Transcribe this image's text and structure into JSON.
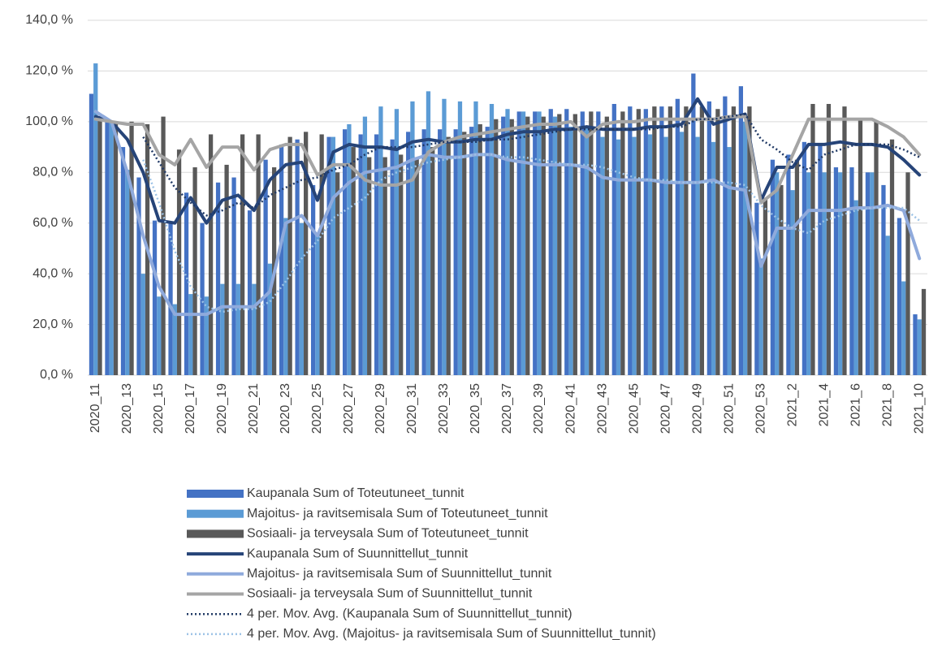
{
  "chart_data": {
    "type": "combo",
    "categories": [
      "2020_11",
      null,
      "2020_13",
      null,
      "2020_15",
      null,
      "2020_17",
      null,
      "2020_19",
      null,
      "2020_21",
      null,
      "2020_23",
      null,
      "2020_25",
      null,
      "2020_27",
      null,
      "2020_29",
      null,
      "2020_31",
      null,
      "2020_33",
      null,
      "2020_35",
      null,
      "2020_37",
      null,
      "2020_39",
      null,
      "2020_41",
      null,
      "2020_43",
      null,
      "2020_45",
      null,
      "2020_47",
      null,
      "2020_49",
      null,
      "2020_51",
      null,
      "2020_53",
      null,
      "2021_2",
      null,
      "2021_4",
      null,
      "2021_6",
      null,
      "2021_8",
      null,
      "2021_10"
    ],
    "ylim": [
      0,
      140
    ],
    "yticks": [
      {
        "value": 0,
        "label": "0,0 %"
      },
      {
        "value": 20,
        "label": "20,0 %"
      },
      {
        "value": 40,
        "label": "40,0 %"
      },
      {
        "value": 60,
        "label": "60,0 %"
      },
      {
        "value": 80,
        "label": "80,0 %"
      },
      {
        "value": 100,
        "label": "100,0 %"
      },
      {
        "value": 120,
        "label": "120,0 %"
      },
      {
        "value": 140,
        "label": "140,0 %"
      }
    ],
    "grid": true,
    "series": [
      {
        "name": "Kaupanala Sum of Toteutuneet_tunnit",
        "style": "bar",
        "color": "#4472c4",
        "values": [
          111,
          100,
          90,
          78,
          61,
          60,
          72,
          60,
          76,
          78,
          65,
          85,
          91,
          93,
          75,
          94,
          97,
          95,
          95,
          93,
          96,
          97,
          97,
          97,
          98,
          98,
          102,
          104,
          104,
          105,
          105,
          104,
          104,
          107,
          106,
          105,
          106,
          109,
          119,
          108,
          110,
          114,
          68,
          85,
          87,
          92,
          91,
          82,
          82,
          80,
          75,
          62,
          24
        ]
      },
      {
        "name": "Majoitus- ja ravitsemisala Sum of Toteutuneet_tunnit",
        "style": "bar",
        "color": "#5b9bd5",
        "values": [
          123,
          100,
          81,
          40,
          31,
          28,
          32,
          31,
          36,
          36,
          36,
          44,
          62,
          60,
          56,
          94,
          99,
          102,
          106,
          105,
          108,
          112,
          109,
          108,
          108,
          107,
          105,
          104,
          104,
          102,
          98,
          98,
          94,
          93,
          94,
          95,
          94,
          96,
          94,
          92,
          90,
          100,
          46,
          80,
          73,
          80,
          80,
          80,
          69,
          80,
          55,
          37,
          22
        ]
      },
      {
        "name": "Sosiaali- ja terveysala Sum of Toteutuneet_tunnit",
        "style": "bar",
        "color": "#595959",
        "values": [
          101,
          100,
          100,
          99,
          102,
          89,
          82,
          95,
          83,
          95,
          95,
          82,
          94,
          96,
          95,
          80,
          90,
          86,
          86,
          87,
          86,
          90,
          94,
          96,
          99,
          101,
          101,
          102,
          102,
          103,
          103,
          104,
          102,
          104,
          105,
          106,
          106,
          106,
          106,
          105,
          106,
          106,
          70,
          75,
          85,
          107,
          107,
          106,
          101,
          100,
          93,
          80,
          34
        ]
      },
      {
        "name": "Kaupanala Sum of Suunnittellut_tunnit",
        "style": "line",
        "color": "#264478",
        "values": [
          102,
          100,
          93,
          80,
          61,
          60,
          70,
          60,
          69,
          71,
          65,
          77,
          83,
          84,
          69,
          88,
          91,
          90,
          90,
          89,
          92,
          93,
          92,
          92,
          93,
          93,
          95,
          96,
          96,
          97,
          97,
          98,
          97,
          97,
          97,
          98,
          98,
          99,
          109,
          99,
          101,
          103,
          69,
          82,
          82,
          91,
          91,
          92,
          91,
          91,
          90,
          85,
          79
        ]
      },
      {
        "name": "Majoitus- ja ravitsemisala Sum of Suunnittellut_tunnit",
        "style": "line",
        "color": "#8faadc",
        "values": [
          104,
          100,
          80,
          55,
          35,
          24,
          24,
          24,
          27,
          27,
          27,
          33,
          60,
          63,
          55,
          70,
          76,
          80,
          81,
          82,
          85,
          87,
          86,
          86,
          87,
          87,
          85,
          84,
          83,
          83,
          83,
          82,
          78,
          77,
          77,
          77,
          76,
          76,
          76,
          77,
          74,
          73,
          43,
          58,
          58,
          65,
          65,
          65,
          66,
          66,
          67,
          65,
          46
        ]
      },
      {
        "name": "Sosiaali- ja terveysala Sum of Suunnittellut_tunnit",
        "style": "line",
        "color": "#a5a5a5",
        "values": [
          101,
          100,
          99,
          99,
          87,
          83,
          93,
          82,
          90,
          90,
          81,
          89,
          91,
          91,
          79,
          83,
          83,
          77,
          75,
          75,
          77,
          88,
          92,
          94,
          95,
          96,
          97,
          98,
          99,
          99,
          100,
          94,
          99,
          100,
          100,
          101,
          101,
          101,
          101,
          101,
          102,
          102,
          68,
          73,
          87,
          101,
          101,
          101,
          101,
          101,
          98,
          94,
          87
        ]
      },
      {
        "name": "4 per. Mov. Avg. (Kaupanala Sum of Suunnittellut_tunnit)",
        "style": "dotted",
        "color": "#1f3864",
        "values": [
          null,
          null,
          null,
          94,
          84,
          74,
          68,
          63,
          65,
          68,
          66,
          71,
          74,
          77,
          78,
          81,
          83,
          87,
          90,
          90,
          90,
          91,
          92,
          92,
          92,
          93,
          93,
          94,
          95,
          96,
          97,
          97,
          97,
          97,
          97,
          97,
          98,
          98,
          101,
          101,
          102,
          103,
          93,
          89,
          84,
          81,
          87,
          89,
          91,
          91,
          91,
          89,
          86
        ]
      },
      {
        "name": "4 per. Mov. Avg. (Majoitus- ja ravitsemisala Sum of Suunnittellut_tunnit)",
        "style": "dotted",
        "color": "#9dc3e6",
        "values": [
          null,
          null,
          null,
          85,
          68,
          49,
          35,
          27,
          25,
          26,
          26,
          29,
          37,
          46,
          53,
          62,
          66,
          70,
          77,
          80,
          82,
          84,
          85,
          86,
          87,
          87,
          86,
          86,
          85,
          84,
          83,
          83,
          82,
          80,
          78,
          77,
          77,
          76,
          76,
          76,
          76,
          75,
          67,
          62,
          58,
          56,
          61,
          63,
          65,
          66,
          66,
          66,
          61
        ]
      }
    ]
  }
}
